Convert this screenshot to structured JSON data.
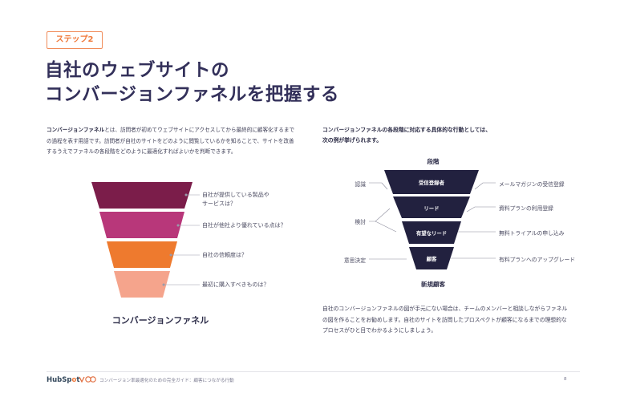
{
  "step_label": "ステップ2",
  "title": {
    "line1": "自社のウェブサイトの",
    "line2": "コンバージョンファネルを把握する"
  },
  "intro": {
    "bold": "コンバージョンファネル",
    "text": "とは、訪問者が初めてウェブサイトにアクセスしてから最終的に顧客化するまでの過程を表す用語です。訪問者が自社のサイトをどのように閲覧しているかを知ることで、サイトを改善するうえでファネルの各段階をどのように最適化すればよいかを判断できます。"
  },
  "left_funnel": {
    "caption": "コンバージョンファネル",
    "questions": [
      {
        "line1": "自社が提供している製品や",
        "line2": "サービスは？"
      },
      {
        "line1": "自社が他社より優れている点は？",
        "line2": ""
      },
      {
        "line1": "自社の信頼度は？",
        "line2": ""
      },
      {
        "line1": "最初に購入すべきものは？",
        "line2": ""
      }
    ],
    "colors": [
      "#7b1d4a",
      "#b8377a",
      "#ee7a2e",
      "#f5a48c"
    ]
  },
  "right_intro": {
    "line1": "コンバージョンファネルの各段階に対応する具体的な行動としては、",
    "line2": "次の例が挙げられます。"
  },
  "right_funnel": {
    "header": "段階",
    "footer": "新規顧客",
    "stages": [
      "受信登録者",
      "リード",
      "有望なリード",
      "顧客"
    ],
    "left_labels": [
      "認識",
      "検討",
      "意思決定"
    ],
    "right_labels": [
      "メールマガジンの受信登録",
      "資料プランの利用登録",
      "無料トライアルの申し込み",
      "有料プランへのアップグレード"
    ],
    "color": "#22213f"
  },
  "bottom_para": "自社のコンバージョンファネルの図が手元にない場合は、チームのメンバーと相談しながらファネルの図を作ることをお勧めします。自社のサイトを訪問したプロスペクトが顧客になるまでの理想的なプロセスがひと目でわかるようにしましょう。",
  "footer": {
    "brand": "HubSpot",
    "text": "コンバージョン率最適化のための完全ガイド：顧客につながる行動",
    "page": "8"
  },
  "accent_color": "#f07a3c"
}
